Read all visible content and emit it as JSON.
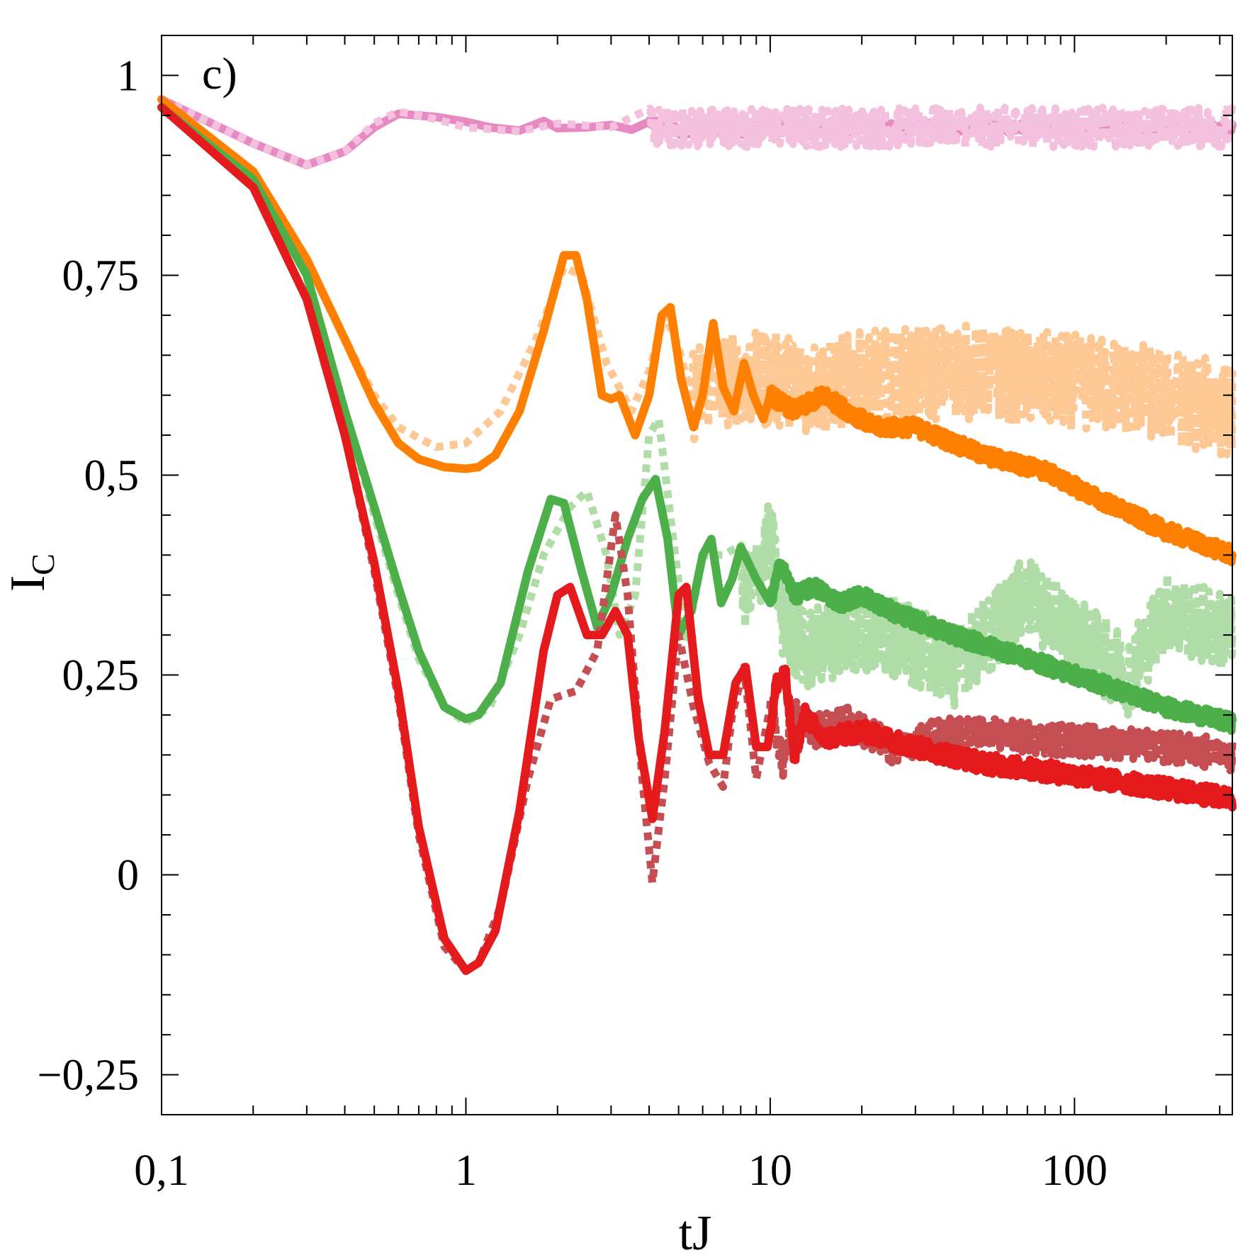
{
  "chart_data": {
    "type": "line",
    "panel_label": "c)",
    "xlabel": "tJ",
    "ylabel": "I",
    "ylabel_sub": "C",
    "x_scale": "log",
    "xlim": [
      0.1,
      330
    ],
    "ylim": [
      -0.3,
      1.05
    ],
    "x_ticks": [
      {
        "value": 0.1,
        "label": "0,1"
      },
      {
        "value": 1,
        "label": "1"
      },
      {
        "value": 10,
        "label": "10"
      },
      {
        "value": 100,
        "label": "100"
      }
    ],
    "y_ticks": [
      {
        "value": -0.25,
        "label": "−0,25"
      },
      {
        "value": 0,
        "label": "0"
      },
      {
        "value": 0.25,
        "label": "0,25"
      },
      {
        "value": 0.5,
        "label": "0,5"
      },
      {
        "value": 0.75,
        "label": "0,75"
      },
      {
        "value": 1,
        "label": "1"
      }
    ],
    "grid": false,
    "colors": {
      "pink": "#e78ac3",
      "pink_light": "#f3c1dd",
      "orange": "#ff7f00",
      "orange_light": "#fdc894",
      "green": "#4daf4a",
      "green_light": "#b0dca8",
      "red": "#e41a1c",
      "red_dark": "#c44e52"
    },
    "series": [
      {
        "color": "pink",
        "style": "solid",
        "points": [
          [
            0.1,
            0.97
          ],
          [
            0.2,
            0.915
          ],
          [
            0.3,
            0.888
          ],
          [
            0.4,
            0.905
          ],
          [
            0.5,
            0.935
          ],
          [
            0.6,
            0.952
          ],
          [
            0.8,
            0.948
          ],
          [
            1.0,
            0.942
          ],
          [
            1.2,
            0.935
          ],
          [
            1.5,
            0.931
          ],
          [
            1.8,
            0.943
          ],
          [
            2.0,
            0.934
          ],
          [
            2.5,
            0.935
          ],
          [
            3.0,
            0.938
          ],
          [
            3.5,
            0.932
          ],
          [
            4.0,
            0.942
          ],
          [
            5.0,
            0.93
          ],
          [
            6.0,
            0.936
          ],
          [
            8.0,
            0.93
          ],
          [
            10,
            0.935
          ],
          [
            20,
            0.935
          ],
          [
            50,
            0.935
          ],
          [
            100,
            0.934
          ],
          [
            330,
            0.934
          ]
        ],
        "noise": {
          "from": 4.0,
          "amplitude": 0.006
        }
      },
      {
        "color": "pink_light",
        "style": "dotted",
        "points": [
          [
            0.1,
            0.97
          ],
          [
            0.2,
            0.915
          ],
          [
            0.3,
            0.888
          ],
          [
            0.4,
            0.905
          ],
          [
            0.5,
            0.94
          ],
          [
            0.6,
            0.955
          ],
          [
            0.8,
            0.945
          ],
          [
            1.0,
            0.935
          ],
          [
            1.5,
            0.93
          ],
          [
            2.0,
            0.94
          ],
          [
            3.0,
            0.935
          ],
          [
            5.0,
            0.935
          ],
          [
            10,
            0.935
          ],
          [
            100,
            0.935
          ],
          [
            330,
            0.935
          ]
        ],
        "noise": {
          "from": 4.0,
          "amplitude": 0.025
        }
      },
      {
        "color": "orange_light",
        "style": "dotted",
        "points": [
          [
            0.1,
            0.97
          ],
          [
            0.2,
            0.88
          ],
          [
            0.3,
            0.77
          ],
          [
            0.4,
            0.67
          ],
          [
            0.5,
            0.6
          ],
          [
            0.6,
            0.56
          ],
          [
            0.8,
            0.535
          ],
          [
            1.0,
            0.54
          ],
          [
            1.3,
            0.58
          ],
          [
            1.7,
            0.67
          ],
          [
            2.1,
            0.76
          ],
          [
            2.4,
            0.75
          ],
          [
            2.9,
            0.64
          ],
          [
            3.5,
            0.58
          ],
          [
            4.0,
            0.63
          ],
          [
            4.5,
            0.7
          ],
          [
            5.0,
            0.66
          ],
          [
            5.5,
            0.6
          ],
          [
            6.5,
            0.62
          ],
          [
            8,
            0.62
          ],
          [
            10,
            0.62
          ],
          [
            15,
            0.61
          ],
          [
            20,
            0.62
          ],
          [
            40,
            0.63
          ],
          [
            80,
            0.62
          ],
          [
            150,
            0.61
          ],
          [
            330,
            0.58
          ]
        ],
        "noise": {
          "from": 5.5,
          "amplitude": 0.06
        }
      },
      {
        "color": "orange",
        "style": "solid",
        "points": [
          [
            0.1,
            0.97
          ],
          [
            0.2,
            0.88
          ],
          [
            0.3,
            0.77
          ],
          [
            0.4,
            0.67
          ],
          [
            0.5,
            0.59
          ],
          [
            0.6,
            0.54
          ],
          [
            0.7,
            0.52
          ],
          [
            0.85,
            0.51
          ],
          [
            1.0,
            0.508
          ],
          [
            1.1,
            0.51
          ],
          [
            1.25,
            0.525
          ],
          [
            1.5,
            0.58
          ],
          [
            1.8,
            0.68
          ],
          [
            2.1,
            0.775
          ],
          [
            2.3,
            0.775
          ],
          [
            2.5,
            0.72
          ],
          [
            2.8,
            0.6
          ],
          [
            3.0,
            0.595
          ],
          [
            3.2,
            0.6
          ],
          [
            3.6,
            0.55
          ],
          [
            4.0,
            0.6
          ],
          [
            4.4,
            0.7
          ],
          [
            4.7,
            0.71
          ],
          [
            5.1,
            0.62
          ],
          [
            5.6,
            0.56
          ],
          [
            6.0,
            0.6
          ],
          [
            6.5,
            0.69
          ],
          [
            7.0,
            0.61
          ],
          [
            7.6,
            0.58
          ],
          [
            8.2,
            0.64
          ],
          [
            8.8,
            0.6
          ],
          [
            9.5,
            0.57
          ],
          [
            10,
            0.6
          ],
          [
            12,
            0.58
          ],
          [
            15,
            0.6
          ],
          [
            18,
            0.58
          ],
          [
            22,
            0.56
          ],
          [
            30,
            0.56
          ],
          [
            50,
            0.525
          ],
          [
            80,
            0.505
          ],
          [
            120,
            0.47
          ],
          [
            200,
            0.43
          ],
          [
            330,
            0.4
          ]
        ],
        "noise": {
          "from": 10,
          "amplitude": 0.01
        }
      },
      {
        "color": "green_light",
        "style": "dotted",
        "points": [
          [
            0.1,
            0.96
          ],
          [
            0.2,
            0.87
          ],
          [
            0.3,
            0.75
          ],
          [
            0.4,
            0.58
          ],
          [
            0.5,
            0.45
          ],
          [
            0.6,
            0.35
          ],
          [
            0.7,
            0.27
          ],
          [
            0.85,
            0.21
          ],
          [
            1.0,
            0.19
          ],
          [
            1.2,
            0.21
          ],
          [
            1.5,
            0.3
          ],
          [
            1.8,
            0.4
          ],
          [
            2.2,
            0.46
          ],
          [
            2.5,
            0.48
          ],
          [
            2.9,
            0.4
          ],
          [
            3.2,
            0.3
          ],
          [
            3.6,
            0.35
          ],
          [
            4.0,
            0.55
          ],
          [
            4.3,
            0.57
          ],
          [
            4.8,
            0.42
          ],
          [
            5.3,
            0.29
          ],
          [
            6.0,
            0.4
          ],
          [
            7.0,
            0.4
          ],
          [
            8.5,
            0.35
          ],
          [
            10,
            0.42
          ],
          [
            11,
            0.32
          ],
          [
            13,
            0.28
          ],
          [
            17,
            0.3
          ],
          [
            25,
            0.3
          ],
          [
            40,
            0.26
          ],
          [
            70,
            0.35
          ],
          [
            100,
            0.3
          ],
          [
            150,
            0.25
          ],
          [
            200,
            0.33
          ],
          [
            330,
            0.3
          ]
        ],
        "noise": {
          "from": 8,
          "amplitude": 0.05
        }
      },
      {
        "color": "green",
        "style": "solid",
        "points": [
          [
            0.1,
            0.96
          ],
          [
            0.2,
            0.87
          ],
          [
            0.3,
            0.75
          ],
          [
            0.4,
            0.58
          ],
          [
            0.5,
            0.46
          ],
          [
            0.6,
            0.36
          ],
          [
            0.7,
            0.28
          ],
          [
            0.85,
            0.21
          ],
          [
            1.0,
            0.195
          ],
          [
            1.1,
            0.2
          ],
          [
            1.3,
            0.24
          ],
          [
            1.6,
            0.38
          ],
          [
            1.9,
            0.47
          ],
          [
            2.1,
            0.465
          ],
          [
            2.4,
            0.38
          ],
          [
            2.7,
            0.31
          ],
          [
            3.0,
            0.35
          ],
          [
            3.4,
            0.42
          ],
          [
            3.8,
            0.47
          ],
          [
            4.2,
            0.495
          ],
          [
            4.6,
            0.42
          ],
          [
            5.0,
            0.3
          ],
          [
            5.5,
            0.33
          ],
          [
            6.0,
            0.4
          ],
          [
            6.4,
            0.42
          ],
          [
            6.9,
            0.34
          ],
          [
            7.5,
            0.37
          ],
          [
            8.0,
            0.41
          ],
          [
            9.0,
            0.37
          ],
          [
            10,
            0.34
          ],
          [
            10.8,
            0.39
          ],
          [
            12,
            0.35
          ],
          [
            14,
            0.36
          ],
          [
            17,
            0.34
          ],
          [
            20,
            0.35
          ],
          [
            25,
            0.33
          ],
          [
            40,
            0.3
          ],
          [
            70,
            0.27
          ],
          [
            120,
            0.24
          ],
          [
            200,
            0.21
          ],
          [
            330,
            0.19
          ]
        ],
        "noise": {
          "from": 10,
          "amplitude": 0.01
        }
      },
      {
        "color": "red_dark",
        "style": "dotted",
        "points": [
          [
            0.1,
            0.96
          ],
          [
            0.2,
            0.86
          ],
          [
            0.3,
            0.72
          ],
          [
            0.4,
            0.55
          ],
          [
            0.5,
            0.38
          ],
          [
            0.6,
            0.22
          ],
          [
            0.7,
            0.05
          ],
          [
            0.85,
            -0.09
          ],
          [
            1.0,
            -0.12
          ],
          [
            1.1,
            -0.11
          ],
          [
            1.3,
            -0.04
          ],
          [
            1.6,
            0.12
          ],
          [
            1.9,
            0.22
          ],
          [
            2.3,
            0.23
          ],
          [
            2.7,
            0.28
          ],
          [
            3.1,
            0.45
          ],
          [
            3.4,
            0.35
          ],
          [
            3.8,
            0.12
          ],
          [
            4.1,
            -0.01
          ],
          [
            4.5,
            0.12
          ],
          [
            5.0,
            0.3
          ],
          [
            5.6,
            0.21
          ],
          [
            6.3,
            0.14
          ],
          [
            7.0,
            0.11
          ],
          [
            7.5,
            0.2
          ],
          [
            8.2,
            0.26
          ],
          [
            9.0,
            0.12
          ],
          [
            10,
            0.21
          ],
          [
            11,
            0.14
          ],
          [
            12,
            0.2
          ],
          [
            14,
            0.18
          ],
          [
            18,
            0.19
          ],
          [
            25,
            0.16
          ],
          [
            40,
            0.18
          ],
          [
            80,
            0.17
          ],
          [
            150,
            0.165
          ],
          [
            330,
            0.15
          ]
        ],
        "noise": {
          "from": 10,
          "amplitude": 0.02
        }
      },
      {
        "color": "red",
        "style": "solid",
        "points": [
          [
            0.1,
            0.96
          ],
          [
            0.2,
            0.86
          ],
          [
            0.3,
            0.72
          ],
          [
            0.4,
            0.55
          ],
          [
            0.5,
            0.39
          ],
          [
            0.6,
            0.23
          ],
          [
            0.7,
            0.06
          ],
          [
            0.85,
            -0.08
          ],
          [
            1.0,
            -0.12
          ],
          [
            1.1,
            -0.11
          ],
          [
            1.25,
            -0.07
          ],
          [
            1.5,
            0.08
          ],
          [
            1.8,
            0.28
          ],
          [
            2.0,
            0.35
          ],
          [
            2.2,
            0.36
          ],
          [
            2.5,
            0.3
          ],
          [
            2.8,
            0.3
          ],
          [
            3.1,
            0.33
          ],
          [
            3.4,
            0.3
          ],
          [
            3.7,
            0.17
          ],
          [
            4.1,
            0.07
          ],
          [
            4.5,
            0.18
          ],
          [
            5.0,
            0.35
          ],
          [
            5.3,
            0.36
          ],
          [
            5.8,
            0.22
          ],
          [
            6.3,
            0.15
          ],
          [
            7.0,
            0.15
          ],
          [
            7.7,
            0.24
          ],
          [
            8.3,
            0.26
          ],
          [
            9.0,
            0.16
          ],
          [
            9.8,
            0.16
          ],
          [
            10.5,
            0.24
          ],
          [
            11.2,
            0.25
          ],
          [
            12,
            0.15
          ],
          [
            13,
            0.2
          ],
          [
            15,
            0.17
          ],
          [
            20,
            0.18
          ],
          [
            30,
            0.16
          ],
          [
            50,
            0.14
          ],
          [
            80,
            0.13
          ],
          [
            150,
            0.115
          ],
          [
            330,
            0.095
          ]
        ],
        "noise": {
          "from": 10,
          "amplitude": 0.012
        }
      }
    ]
  }
}
